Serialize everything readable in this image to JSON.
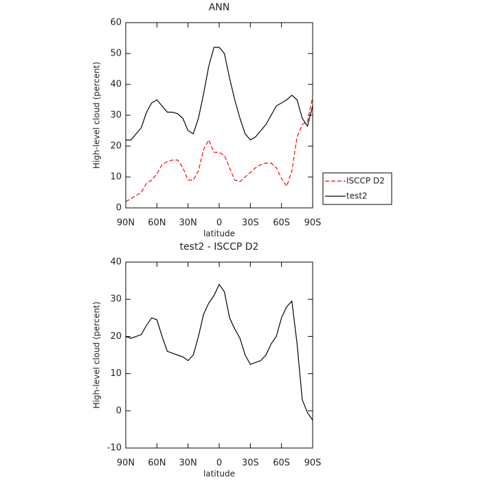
{
  "chart_data": [
    {
      "type": "line",
      "title": "ANN",
      "xlabel": "latitude",
      "ylabel": "High-level cloud (percent)",
      "x": [
        90,
        85,
        80,
        75,
        70,
        65,
        60,
        55,
        50,
        45,
        40,
        35,
        30,
        25,
        20,
        15,
        10,
        5,
        0,
        -5,
        -10,
        -15,
        -20,
        -25,
        -30,
        -35,
        -40,
        -45,
        -50,
        -55,
        -60,
        -65,
        -70,
        -75,
        -80,
        -85,
        -90
      ],
      "series": [
        {
          "name": "ISCCP D2",
          "color": "#ff0000",
          "dashed": true,
          "values": [
            2,
            3,
            4,
            5,
            8,
            9,
            11,
            14,
            15,
            15.5,
            15.5,
            13,
            9,
            9,
            12,
            19,
            22,
            18,
            18,
            17,
            13,
            9,
            8.5,
            10,
            11.5,
            13,
            14,
            14.5,
            14.5,
            13,
            9.5,
            7,
            12,
            23,
            27,
            28,
            36
          ]
        },
        {
          "name": "test2",
          "color": "#000000",
          "dashed": false,
          "values": [
            22,
            22,
            24,
            26,
            31,
            34,
            35,
            33,
            31,
            31,
            30.5,
            29,
            25,
            24,
            29,
            37,
            46,
            52,
            52,
            50,
            42,
            35,
            29,
            24,
            22,
            23,
            25,
            27,
            30,
            33,
            34,
            35,
            36.5,
            35,
            29,
            26.5,
            33
          ]
        }
      ],
      "xlim": [
        90,
        -90
      ],
      "ylim": [
        0,
        60
      ],
      "xticks": [
        {
          "value": 90,
          "label": "90N"
        },
        {
          "value": 60,
          "label": "60N"
        },
        {
          "value": 30,
          "label": "30N"
        },
        0,
        {
          "value": -30,
          "label": "30S"
        },
        {
          "value": -60,
          "label": "60S"
        },
        {
          "value": -90,
          "label": "90S"
        }
      ],
      "yticks": [
        0,
        10,
        20,
        30,
        40,
        50,
        60
      ],
      "legend": "outside right"
    },
    {
      "type": "line",
      "title": "test2 - ISCCP D2",
      "xlabel": "latitude",
      "ylabel": "High-level cloud (percent)",
      "x": [
        90,
        85,
        80,
        75,
        70,
        65,
        60,
        55,
        50,
        45,
        40,
        35,
        30,
        25,
        20,
        15,
        10,
        5,
        0,
        -5,
        -10,
        -15,
        -20,
        -25,
        -30,
        -35,
        -40,
        -45,
        -50,
        -55,
        -60,
        -65,
        -70,
        -75,
        -80,
        -85,
        -90
      ],
      "series": [
        {
          "color": "#000000",
          "dashed": false,
          "values": [
            20,
            19.5,
            20,
            20.5,
            23,
            25,
            24.5,
            20,
            16,
            15.5,
            15,
            14.5,
            13.5,
            15,
            20,
            26,
            29,
            31,
            34,
            32,
            25,
            22,
            19.5,
            15,
            12.5,
            13,
            13.5,
            15,
            18,
            20,
            25,
            28,
            29.5,
            18,
            3,
            -0.5,
            -2.5
          ]
        }
      ],
      "xlim": [
        90,
        -90
      ],
      "ylim": [
        -10,
        40
      ],
      "xticks": [
        {
          "value": 90,
          "label": "90N"
        },
        {
          "value": 60,
          "label": "60N"
        },
        {
          "value": 30,
          "label": "30N"
        },
        0,
        {
          "value": -30,
          "label": "30S"
        },
        {
          "value": -60,
          "label": "60S"
        },
        {
          "value": -90,
          "label": "90S"
        }
      ],
      "yticks": [
        -10,
        0,
        10,
        20,
        30,
        40
      ]
    }
  ]
}
